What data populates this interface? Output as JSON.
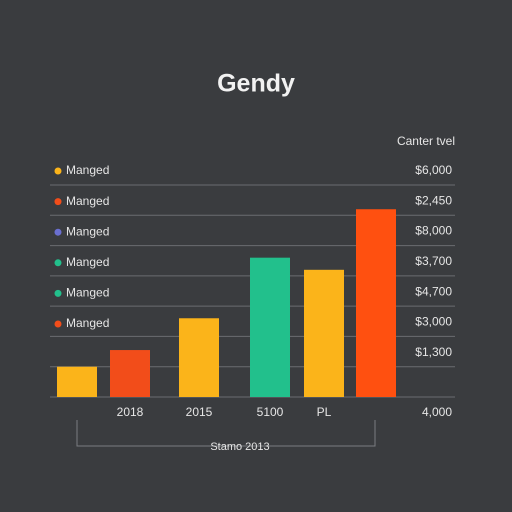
{
  "chart_data": {
    "type": "bar",
    "title": "Gendy",
    "y_axis_label": "Canter tvel",
    "x_axis_label": "Stamo 2013",
    "categories": [
      null,
      "2018",
      "2015",
      "5100",
      "PL",
      null
    ],
    "values": [
      1.0,
      1.55,
      2.6,
      4.6,
      4.2,
      6.2
    ],
    "colors": [
      "#fbb41a",
      "#f24d1a",
      "#fbb41a",
      "#22c08c",
      "#fbb41a",
      "#ff5010"
    ],
    "ylim": [
      0,
      7
    ],
    "yticks": [
      {
        "value": 0,
        "label": "4,000"
      },
      {
        "value": 1,
        "label": "$1,300"
      },
      {
        "value": 2,
        "label": "$3,000"
      },
      {
        "value": 3,
        "label": "$4,700"
      },
      {
        "value": 4,
        "label": "$3,700"
      },
      {
        "value": 5,
        "label": "$8,000"
      },
      {
        "value": 6,
        "label": "$2,450"
      },
      {
        "value": 7,
        "label": "$6,000"
      }
    ],
    "grid": true,
    "legend": [
      {
        "label": "Manged",
        "color": "#fbb41a"
      },
      {
        "label": "Manged",
        "color": "#f24d1a"
      },
      {
        "label": "Manged",
        "color": "#6a6fd0"
      },
      {
        "label": "Manged",
        "color": "#22c08c"
      },
      {
        "label": "Manged",
        "color": "#22c08c"
      },
      {
        "label": "Manged",
        "color": "#f24d1a"
      }
    ]
  }
}
